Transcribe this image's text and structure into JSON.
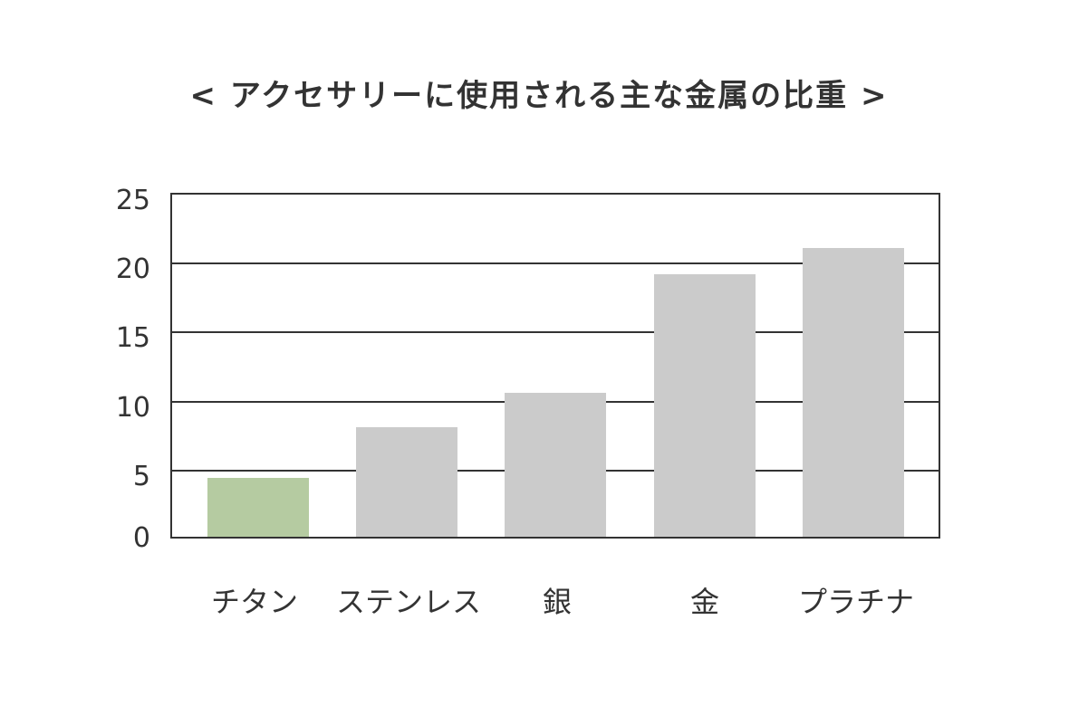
{
  "title": "< アクセサリーに使用される主な金属の比重 >",
  "y_ticks": [
    "25",
    "20",
    "15",
    "10",
    "5",
    "0"
  ],
  "chart_data": {
    "type": "bar",
    "title": "< アクセサリーに使用される主な金属の比重 >",
    "categories": [
      "チタン",
      "ステンレス",
      "銀",
      "金",
      "プラチナ"
    ],
    "values": [
      4.3,
      8.0,
      10.5,
      19.2,
      21.1
    ],
    "xlabel": "",
    "ylabel": "",
    "ylim": [
      0,
      25
    ],
    "yticks": [
      0,
      5,
      10,
      15,
      20,
      25
    ],
    "grid": true,
    "legend": null,
    "colors": [
      "#b5cba1",
      "#cbcbcb",
      "#cbcbcb",
      "#cbcbcb",
      "#cbcbcb"
    ]
  }
}
